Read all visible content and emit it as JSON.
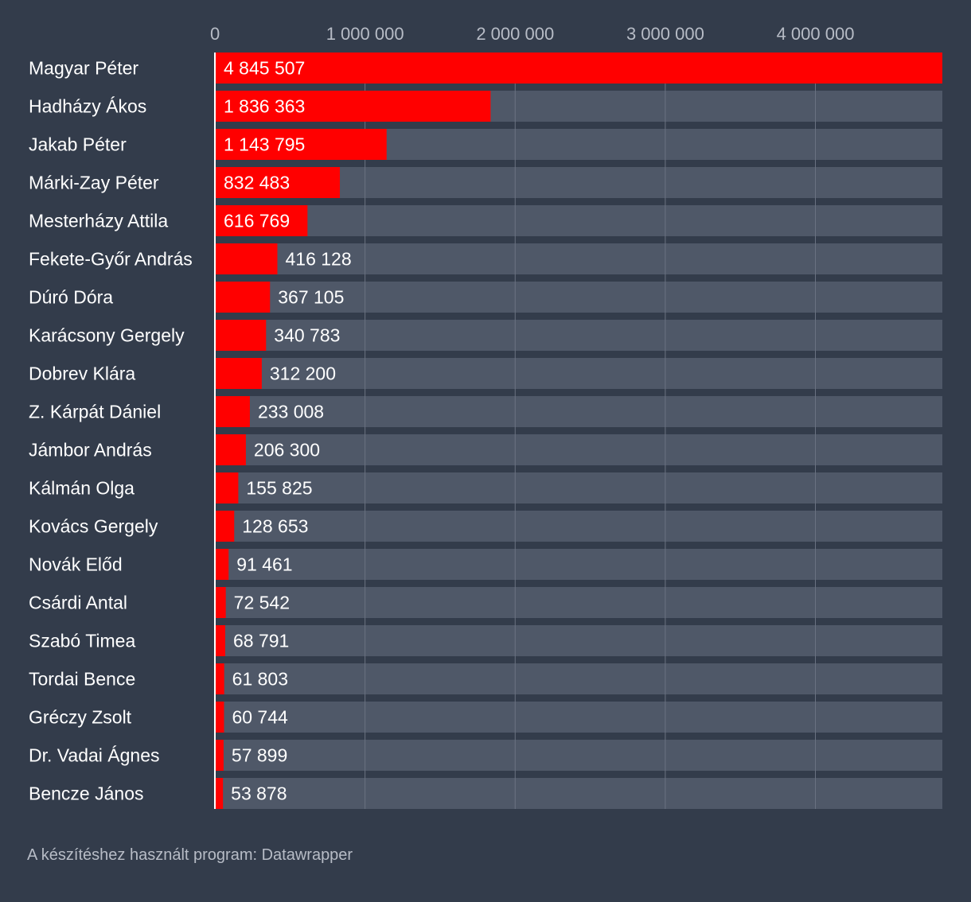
{
  "chart_data": {
    "type": "bar",
    "orientation": "horizontal",
    "categories": [
      "Magyar Péter",
      "Hadházy Ákos",
      "Jakab Péter",
      "Márki-Zay Péter",
      "Mesterházy Attila",
      "Fekete-Győr András",
      "Dúró Dóra",
      "Karácsony Gergely",
      "Dobrev Klára",
      "Z. Kárpát Dániel",
      "Jámbor András",
      "Kálmán Olga",
      "Kovács Gergely",
      "Novák Előd",
      "Csárdi Antal",
      "Szabó Timea",
      "Tordai Bence",
      "Gréczy Zsolt",
      "Dr. Vadai Ágnes",
      "Bencze János"
    ],
    "values": [
      4845507,
      1836363,
      1143795,
      832483,
      616769,
      416128,
      367105,
      340783,
      312200,
      233008,
      206300,
      155825,
      128653,
      91461,
      72542,
      68791,
      61803,
      60744,
      57899,
      53878
    ],
    "value_labels": [
      "4 845 507",
      "1 836 363",
      "1 143 795",
      "832 483",
      "616 769",
      "416 128",
      "367 105",
      "340 783",
      "312 200",
      "233 008",
      "206 300",
      "155 825",
      "128 653",
      "91 461",
      "72 542",
      "68 791",
      "61 803",
      "60 744",
      "57 899",
      "53 878"
    ],
    "x_ticks": [
      0,
      1000000,
      2000000,
      3000000,
      4000000
    ],
    "x_tick_labels": [
      "0",
      "1 000 000",
      "2 000 000",
      "3 000 000",
      "4 000 000"
    ],
    "xlim": [
      0,
      4845507
    ],
    "grid": true,
    "colors": {
      "background": "#333c4b",
      "bar": "#ff0000",
      "track": "#4f5868",
      "grid": "#6b7382",
      "text": "#ffffff",
      "muted_text": "#b7bcc6"
    }
  },
  "footer": "A készítéshez használt program: Datawrapper"
}
